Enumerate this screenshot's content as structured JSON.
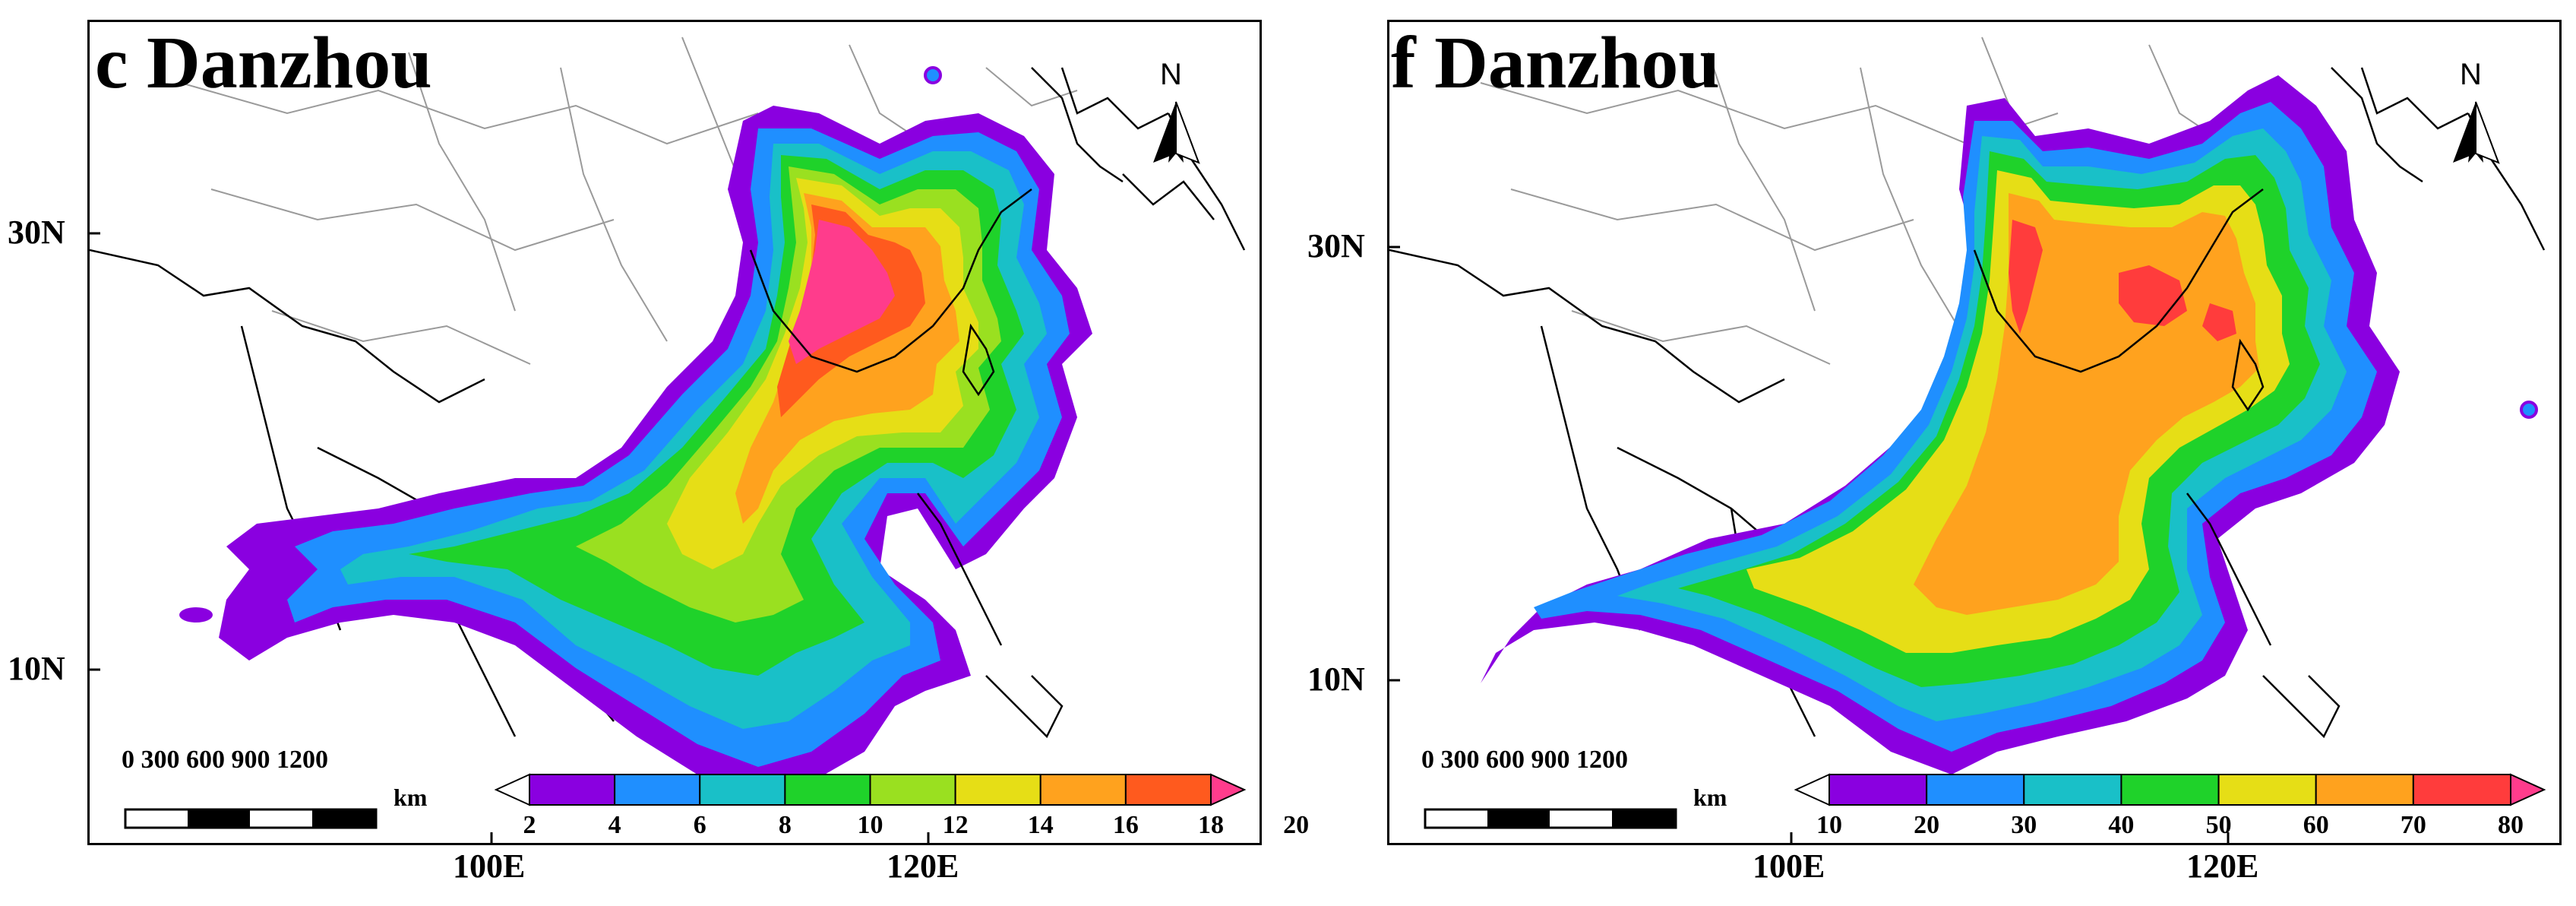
{
  "panels": [
    {
      "id": "left",
      "title": "c  Danzhou",
      "lat_labels": [
        "30N",
        "10N"
      ],
      "lon_labels": [
        "100E",
        "120E"
      ],
      "scale_bar": {
        "numbers": "0    300  600  900  1200",
        "unit": "km"
      },
      "north_arrow": "N",
      "colorbar": {
        "ticks": [
          "2",
          "4",
          "6",
          "8",
          "10",
          "12",
          "14",
          "16",
          "18",
          "20"
        ],
        "colors": [
          "#ffffff",
          "#8a00e0",
          "#1f8fff",
          "#19c0c8",
          "#1fd22a",
          "#9ae020",
          "#e6de16",
          "#ffa21e",
          "#ff5a1e",
          "#ff3c8c"
        ]
      }
    },
    {
      "id": "right",
      "title": "f  Danzhou",
      "lat_labels": [
        "30N",
        "10N"
      ],
      "lon_labels": [
        "100E",
        "120E"
      ],
      "scale_bar": {
        "numbers": "0    300  600  900  1200",
        "unit": "km"
      },
      "north_arrow": "N",
      "colorbar": {
        "ticks": [
          "10",
          "20",
          "30",
          "40",
          "50",
          "60",
          "70",
          "80"
        ],
        "colors": [
          "#ffffff",
          "#8a00e0",
          "#1f8fff",
          "#19c0c8",
          "#1fd22a",
          "#e6de16",
          "#ffa21e",
          "#ff3c3c",
          "#ff3c8c"
        ]
      }
    }
  ]
}
